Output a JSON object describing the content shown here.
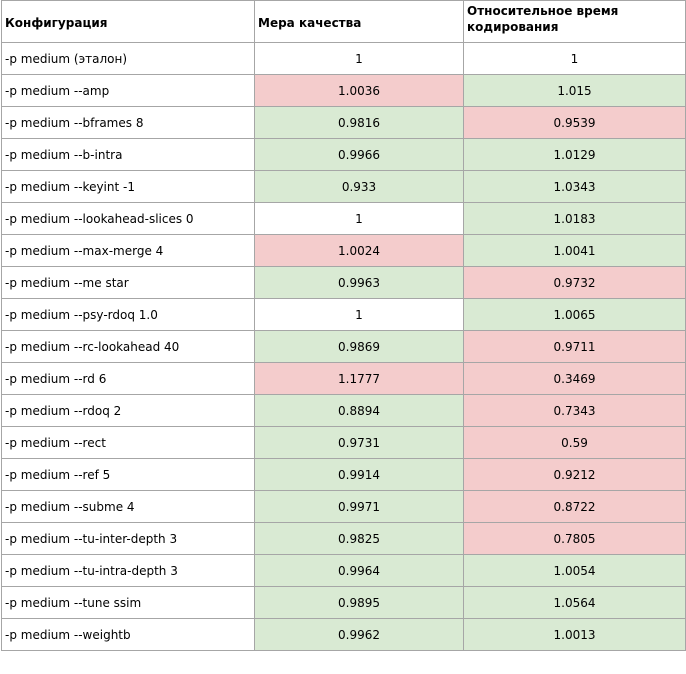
{
  "headers": {
    "config": "Конфигурация",
    "quality": "Мера качества",
    "time": "Относительное время кодирования"
  },
  "colors": {
    "positive": "#d9ead3",
    "negative": "#f4cccc",
    "neutral": "#ffffff"
  },
  "rows": [
    {
      "config": "-p medium (эталон)",
      "quality": "1",
      "time": "1",
      "quality_status": "neutral",
      "time_status": "neutral"
    },
    {
      "config": "-p medium --amp",
      "quality": "1.0036",
      "time": "1.015",
      "quality_status": "negative",
      "time_status": "positive"
    },
    {
      "config": "-p medium --bframes 8",
      "quality": "0.9816",
      "time": "0.9539",
      "quality_status": "positive",
      "time_status": "negative"
    },
    {
      "config": "-p medium --b-intra",
      "quality": "0.9966",
      "time": "1.0129",
      "quality_status": "positive",
      "time_status": "positive"
    },
    {
      "config": "-p medium --keyint -1",
      "quality": "0.933",
      "time": "1.0343",
      "quality_status": "positive",
      "time_status": "positive"
    },
    {
      "config": "-p medium --lookahead-slices 0",
      "quality": "1",
      "time": "1.0183",
      "quality_status": "neutral",
      "time_status": "positive"
    },
    {
      "config": "-p medium --max-merge 4",
      "quality": "1.0024",
      "time": "1.0041",
      "quality_status": "negative",
      "time_status": "positive"
    },
    {
      "config": "-p medium --me star",
      "quality": "0.9963",
      "time": "0.9732",
      "quality_status": "positive",
      "time_status": "negative"
    },
    {
      "config": "-p medium --psy-rdoq 1.0",
      "quality": "1",
      "time": "1.0065",
      "quality_status": "neutral",
      "time_status": "positive"
    },
    {
      "config": "-p medium --rc-lookahead 40",
      "quality": "0.9869",
      "time": "0.9711",
      "quality_status": "positive",
      "time_status": "negative"
    },
    {
      "config": "-p medium --rd 6",
      "quality": "1.1777",
      "time": "0.3469",
      "quality_status": "negative",
      "time_status": "negative"
    },
    {
      "config": "-p medium --rdoq 2",
      "quality": "0.8894",
      "time": "0.7343",
      "quality_status": "positive",
      "time_status": "negative"
    },
    {
      "config": "-p medium --rect",
      "quality": "0.9731",
      "time": "0.59",
      "quality_status": "positive",
      "time_status": "negative"
    },
    {
      "config": "-p medium --ref 5",
      "quality": "0.9914",
      "time": "0.9212",
      "quality_status": "positive",
      "time_status": "negative"
    },
    {
      "config": "-p medium --subme 4",
      "quality": "0.9971",
      "time": "0.8722",
      "quality_status": "positive",
      "time_status": "negative"
    },
    {
      "config": "-p medium --tu-inter-depth 3",
      "quality": "0.9825",
      "time": "0.7805",
      "quality_status": "positive",
      "time_status": "negative"
    },
    {
      "config": "-p medium --tu-intra-depth 3",
      "quality": "0.9964",
      "time": "1.0054",
      "quality_status": "positive",
      "time_status": "positive"
    },
    {
      "config": "-p medium --tune ssim",
      "quality": "0.9895",
      "time": "1.0564",
      "quality_status": "positive",
      "time_status": "positive"
    },
    {
      "config": "-p medium --weightb",
      "quality": "0.9962",
      "time": "1.0013",
      "quality_status": "positive",
      "time_status": "positive"
    }
  ]
}
